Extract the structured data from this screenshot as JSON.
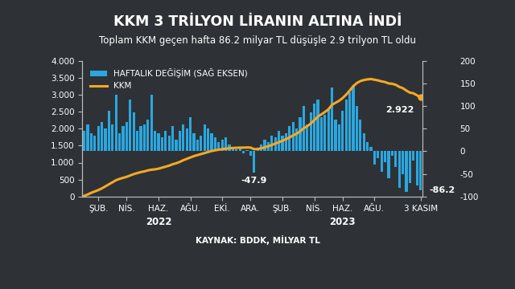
{
  "chart_data": {
    "type": "bar",
    "title": "KKM 3 TRİLYON LİRANIN ALTINA İNDİ",
    "subtitle": "Toplam KKM geçen hafta 86.2 milyar TL düşüşle 2.9 trilyon TL oldu",
    "source": "KAYNAK: BDDK, MİLYAR TL",
    "categories": [
      null,
      null,
      null,
      null,
      "ŞUB.",
      null,
      null,
      null,
      null,
      null,
      null,
      null,
      "NİS.",
      null,
      null,
      null,
      null,
      null,
      null,
      null,
      null,
      "HAZ.",
      null,
      null,
      null,
      null,
      null,
      null,
      null,
      null,
      "AĞU.",
      null,
      null,
      null,
      null,
      null,
      null,
      null,
      null,
      "EKİ.",
      null,
      null,
      null,
      null,
      null,
      null,
      null,
      "ARA.",
      null,
      null,
      null,
      null,
      null,
      null,
      null,
      null,
      "ŞUB.",
      null,
      null,
      null,
      null,
      null,
      null,
      null,
      null,
      "NİS.",
      null,
      null,
      null,
      null,
      null,
      null,
      null,
      "HAZ.",
      null,
      null,
      null,
      null,
      null,
      null,
      null,
      null,
      "AĞU.",
      null,
      null,
      null,
      null,
      null,
      null,
      null,
      null,
      null,
      null,
      null,
      null,
      "3 KASIM"
    ],
    "year_labels": [
      {
        "text": "2022",
        "category_index": 21
      },
      {
        "text": "2023",
        "category_index": 73
      }
    ],
    "series": [
      {
        "name": "HAFTALIK DEĞİŞİM (SAĞ EKSEN)",
        "type": "bar",
        "axis": "y2",
        "color": "#2aa7e0",
        "values": [
          45,
          60,
          40,
          35,
          55,
          65,
          50,
          90,
          60,
          125,
          40,
          55,
          65,
          115,
          85,
          45,
          55,
          60,
          70,
          125,
          45,
          40,
          30,
          45,
          35,
          55,
          25,
          45,
          60,
          50,
          75,
          40,
          25,
          35,
          60,
          50,
          40,
          30,
          20,
          25,
          30,
          15,
          10,
          5,
          10,
          -5,
          2,
          -10,
          -47.9,
          5,
          15,
          25,
          20,
          35,
          30,
          45,
          35,
          40,
          55,
          65,
          50,
          75,
          100,
          60,
          85,
          105,
          115,
          75,
          80,
          95,
          140,
          70,
          60,
          90,
          115,
          130,
          145,
          100,
          70,
          40,
          20,
          10,
          -30,
          -15,
          -45,
          -25,
          -60,
          -10,
          -35,
          -80,
          -50,
          -90,
          -70,
          -20,
          -75,
          -86.2
        ]
      },
      {
        "name": "KKM",
        "type": "line",
        "color": "#f7a823",
        "values": [
          20,
          60,
          110,
          150,
          190,
          240,
          300,
          360,
          420,
          480,
          520,
          550,
          580,
          620,
          660,
          690,
          720,
          740,
          770,
          790,
          800,
          820,
          850,
          880,
          910,
          950,
          980,
          1020,
          1070,
          1110,
          1150,
          1190,
          1220,
          1250,
          1280,
          1310,
          1340,
          1360,
          1380,
          1395,
          1410,
          1420,
          1430,
          1435,
          1440,
          1440,
          1445,
          1440,
          1395,
          1400,
          1420,
          1450,
          1480,
          1520,
          1560,
          1600,
          1640,
          1690,
          1740,
          1800,
          1850,
          1920,
          2010,
          2070,
          2150,
          2250,
          2350,
          2420,
          2490,
          2570,
          2700,
          2760,
          2820,
          2900,
          3000,
          3120,
          3250,
          3340,
          3400,
          3430,
          3450,
          3460,
          3440,
          3420,
          3390,
          3370,
          3330,
          3320,
          3290,
          3230,
          3190,
          3120,
          3060,
          3040,
          2980,
          2922
        ]
      }
    ],
    "annotations": [
      {
        "text": "-47.9",
        "series": 0,
        "index": 48
      },
      {
        "text": "2.922",
        "series": 1,
        "index": 95
      },
      {
        "text": "-86.2",
        "series": 0,
        "index": 95
      }
    ],
    "ylim": [
      0,
      4000
    ],
    "yticks": [
      0,
      500,
      {
        "value": 1000,
        "label": "1.000"
      },
      {
        "value": 1500,
        "label": "1.500"
      },
      {
        "value": 2000,
        "label": "2.000"
      },
      {
        "value": 2500,
        "label": "2.500"
      },
      {
        "value": 3000,
        "label": "3.000"
      },
      {
        "value": 3500,
        "label": "3.500"
      },
      {
        "value": 4000,
        "label": "4.000"
      }
    ],
    "y2lim": [
      -100,
      200
    ],
    "y2ticks": [
      -100,
      -50,
      0,
      50,
      100,
      150,
      200
    ],
    "legend": "upper left",
    "grid": false
  }
}
